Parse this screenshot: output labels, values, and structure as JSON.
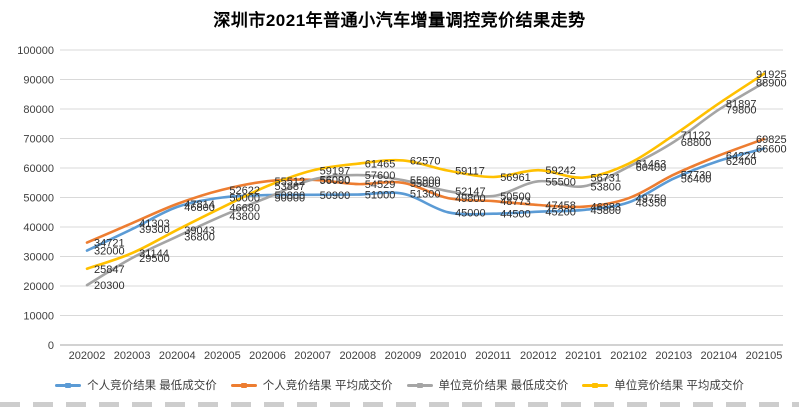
{
  "title": "深圳市2021年普通小汽车增量调控竞价结果走势",
  "chart_data": {
    "type": "line",
    "title": "深圳市2021年普通小汽车增量调控竞价结果走势",
    "categories": [
      "202002",
      "202003",
      "202004",
      "202005",
      "202006",
      "202007",
      "202008",
      "202009",
      "202010",
      "202011",
      "202012",
      "202101",
      "202102",
      "202103",
      "202104",
      "202105"
    ],
    "series": [
      {
        "name": "个人竞价结果 最低成交价",
        "color": "#5B9BD5",
        "values": [
          32000,
          39300,
          46800,
          50000,
          50800,
          50900,
          51000,
          51300,
          45000,
          44500,
          45200,
          45800,
          48350,
          56400,
          62400,
          66600
        ]
      },
      {
        "name": "个人竞价结果 平均成交价",
        "color": "#ED7D31",
        "values": [
          34721,
          41303,
          47814,
          52622,
          55512,
          56000,
          54529,
          55000,
          49800,
          48773,
          47458,
          46883,
          49750,
          57730,
          64224,
          69825
        ]
      },
      {
        "name": "单位竞价结果 最低成交价",
        "color": "#A5A5A5",
        "values": [
          20300,
          29500,
          36800,
          43800,
          50000,
          56090,
          57600,
          55900,
          52147,
          50500,
          55500,
          53800,
          60400,
          68800,
          79800,
          88900
        ]
      },
      {
        "name": "单位竞价结果 平均成交价",
        "color": "#FFC000",
        "values": [
          25847,
          31144,
          39043,
          46680,
          53887,
          59197,
          61465,
          62570,
          59117,
          56961,
          59242,
          56731,
          61463,
          71122,
          81897,
          91925
        ]
      }
    ],
    "y_ticks": [
      "0",
      "10000",
      "20000",
      "30000",
      "40000",
      "50000",
      "60000",
      "70000",
      "80000",
      "90000",
      "100000"
    ],
    "ylim": [
      0,
      100000
    ],
    "ytick_step": 10000,
    "xlabel": "",
    "ylabel": "",
    "grid": true,
    "data_labels": true,
    "legend_position": "bottom",
    "colors": {
      "gridline": "#D9D9D9",
      "axis_line": "#A6A6A6",
      "tick_text": "#3f3f3f",
      "label_text": "#2e2e2e",
      "background": "#FFFFFF"
    }
  }
}
